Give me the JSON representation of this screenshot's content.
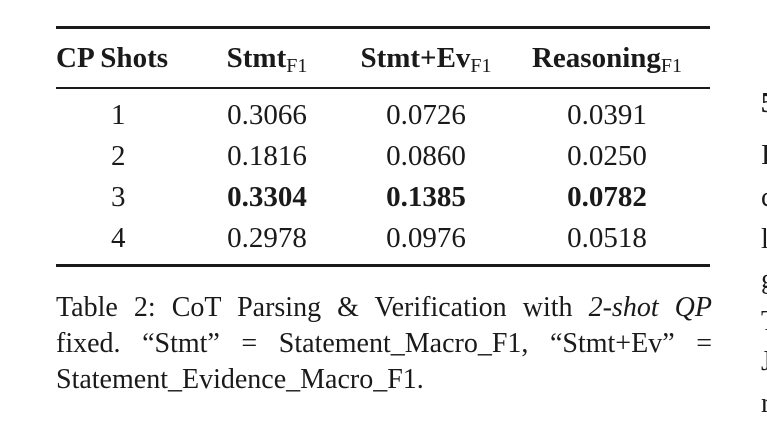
{
  "table": {
    "headers": [
      {
        "main": "CP Shots",
        "sub": ""
      },
      {
        "main": "Stmt",
        "sub": "F1"
      },
      {
        "main": "Stmt+Ev",
        "sub": "F1"
      },
      {
        "main": "Reasoning",
        "sub": "F1"
      }
    ],
    "rows": [
      {
        "shots": "1",
        "stmt": "0.3066",
        "stmt_ev": "0.0726",
        "reasoning": "0.0391",
        "bold": false
      },
      {
        "shots": "2",
        "stmt": "0.1816",
        "stmt_ev": "0.0860",
        "reasoning": "0.0250",
        "bold": false
      },
      {
        "shots": "3",
        "stmt": "0.3304",
        "stmt_ev": "0.1385",
        "reasoning": "0.0782",
        "bold": true
      },
      {
        "shots": "4",
        "stmt": "0.2978",
        "stmt_ev": "0.0976",
        "reasoning": "0.0518",
        "bold": false
      }
    ]
  },
  "caption": {
    "line1_prefix": "Table 2: CoT Parsing & Verification with ",
    "line1_italic": "2-shot QP",
    "line2": "fixed. “Stmt” = Statement_Macro_F1, “Stmt+Ev” =",
    "line3": "Statement_Evidence_Macro_F1."
  },
  "right_column_fragments": [
    "5",
    "I",
    "c",
    "l",
    "g",
    "T",
    "J",
    "r"
  ]
}
